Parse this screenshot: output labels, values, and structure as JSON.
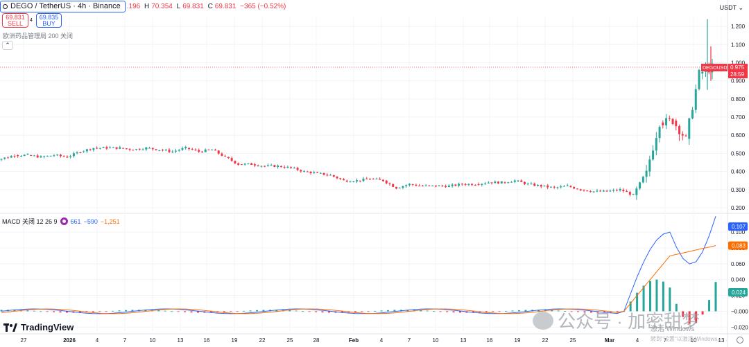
{
  "header": {
    "symbol_title": "DEGO / TetherUS · 4h · Binance",
    "ohlc": {
      "open_fragment": ".196",
      "h_label": "H",
      "high": "70.354",
      "l_label": "L",
      "low": "69.831",
      "c_label": "C",
      "close": "69.831",
      "change": "−365 (−0.52%)"
    }
  },
  "trade": {
    "sell_price": "69.831",
    "sell_label": "SELL",
    "spread": "4",
    "buy_price": "69.835",
    "buy_label": "BUY"
  },
  "indicator_line": "欧洲药品管理局 200 关闭",
  "collapse_glyph": "⌃",
  "currency_label": "USDT ⌄",
  "macd": {
    "label": "MACD 关闭 12 26 9",
    "v1": "661",
    "v2": "−590",
    "v3": "−1,251",
    "colors": {
      "macd": "#2962ff",
      "signal": "#ff6d00",
      "hist_up": "#26a69a",
      "hist_down": "#f23645"
    }
  },
  "price_axis": [
    "1.200",
    "1.100",
    "1.000",
    "0.900",
    "0.800",
    "0.700",
    "0.600",
    "0.500",
    "0.400",
    "0.300",
    "0.200"
  ],
  "price_tag": {
    "symbol": "DEGOUSDT",
    "price": "0.975",
    "countdown": "28:59",
    "color": "#f23645"
  },
  "macd_axis": [
    "0.100",
    "0.080",
    "0.060",
    "0.040",
    "0.020",
    "−0.000",
    "−0.020"
  ],
  "macd_tags": {
    "macd": "0.107",
    "signal": "0.083",
    "hist": "0.024"
  },
  "time_axis": [
    "27",
    "2026",
    "4",
    "7",
    "10",
    "13",
    "16",
    "19",
    "22",
    "25",
    "28",
    "Feb",
    "4",
    "7",
    "10",
    "13",
    "16",
    "19",
    "22",
    "25",
    "Mar",
    "4",
    "7",
    "10",
    "13"
  ],
  "logo_text": "TradingView",
  "watermark": "公众号 · 加密甜梦",
  "windows_text": "激活 Windows",
  "windows_sub": "转到\"设置\"以激活 Windows。",
  "chart_data": {
    "type": "candlestick",
    "title": "DEGO / TetherUS · 4h · Binance",
    "ylim": [
      0.2,
      1.25
    ],
    "last_price": 0.975,
    "approx_closes": [
      0.47,
      0.49,
      0.49,
      0.48,
      0.49,
      0.48,
      0.51,
      0.53,
      0.53,
      0.53,
      0.52,
      0.53,
      0.52,
      0.51,
      0.53,
      0.51,
      0.52,
      0.48,
      0.44,
      0.44,
      0.43,
      0.43,
      0.42,
      0.4,
      0.39,
      0.38,
      0.35,
      0.35,
      0.36,
      0.35,
      0.31,
      0.33,
      0.32,
      0.32,
      0.32,
      0.33,
      0.33,
      0.34,
      0.34,
      0.35,
      0.33,
      0.32,
      0.31,
      0.32,
      0.3,
      0.29,
      0.29,
      0.3,
      0.27,
      0.4,
      0.67,
      0.68,
      0.58,
      0.94,
      0.975
    ],
    "macd_panel": {
      "ylim": [
        -0.025,
        0.115
      ],
      "macd_last": 0.107,
      "signal_last": 0.083,
      "hist_last": 0.024
    }
  }
}
